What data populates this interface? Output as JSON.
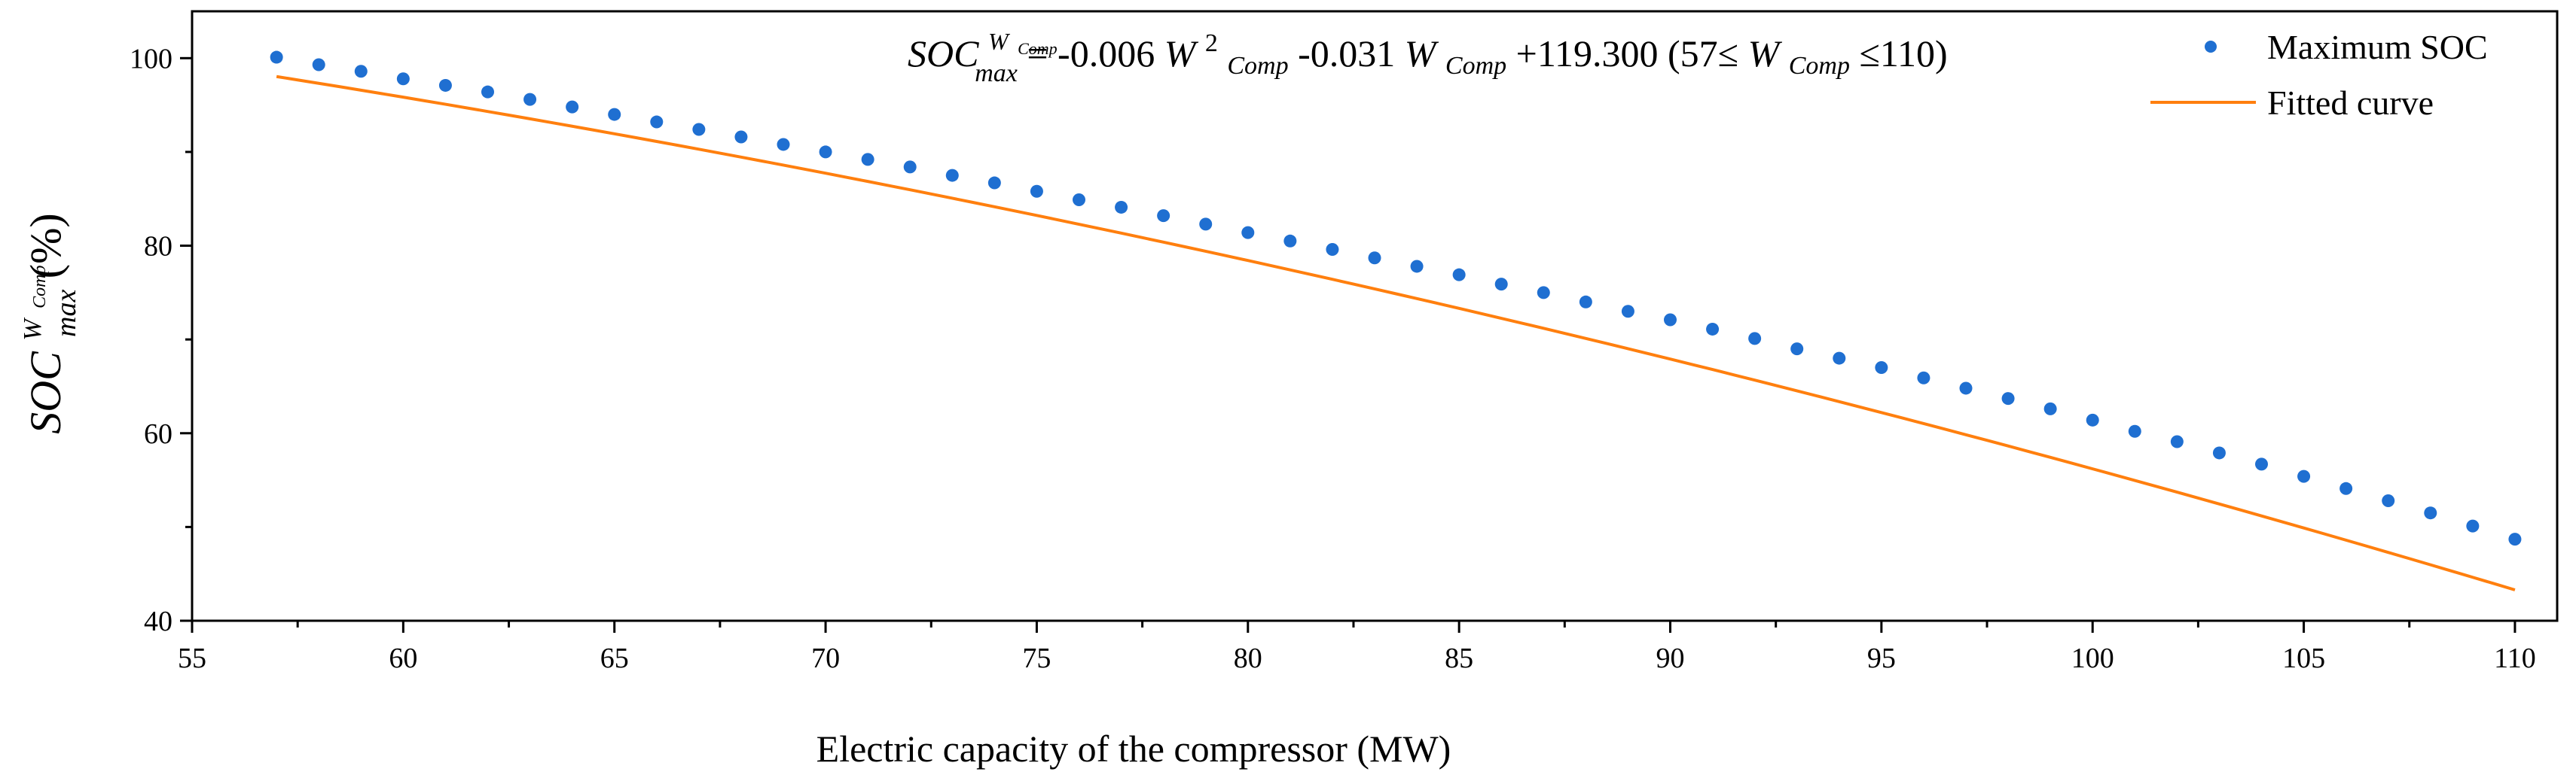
{
  "chart_data": {
    "type": "scatter",
    "xlabel": "Electric capacity of the compressor (MW)",
    "ylabel": {
      "base": "SOC",
      "superscript": "W",
      "superscript_sub": "Comp",
      "subscript": "max",
      "unit": " (%)"
    },
    "xlim": [
      55,
      111
    ],
    "ylim": [
      40,
      105
    ],
    "x_ticks": [
      55,
      60,
      65,
      70,
      75,
      80,
      85,
      90,
      95,
      100,
      105,
      110
    ],
    "y_ticks": [
      40,
      60,
      80,
      100
    ],
    "legend_position": "top-right",
    "equation": {
      "lhs_base": "SOC",
      "lhs_sup": "W",
      "lhs_sup_sub": "Comp",
      "lhs_sub": "max",
      "eq_sign": "=",
      "c2": "-0.006",
      "w": "W",
      "pow": "2",
      "comp": "Comp",
      "c1": "-0.031",
      "c0": "+119.300",
      "range_open": " (57≤",
      "range_close": "≤110)",
      "a": -0.006,
      "b": -0.031,
      "c": 119.3
    },
    "series": [
      {
        "name": "Maximum SOC",
        "kind": "scatter",
        "color": "#1f6fd1",
        "x": [
          57,
          58,
          59,
          60,
          61,
          62,
          63,
          64,
          65,
          66,
          67,
          68,
          69,
          70,
          71,
          72,
          73,
          74,
          75,
          76,
          77,
          78,
          79,
          80,
          81,
          82,
          83,
          84,
          85,
          86,
          87,
          88,
          89,
          90,
          91,
          92,
          93,
          94,
          95,
          96,
          97,
          98,
          99,
          100,
          101,
          102,
          103,
          104,
          105,
          106,
          107,
          108,
          109,
          110
        ],
        "y": [
          100.1,
          99.3,
          98.6,
          97.8,
          97.1,
          96.4,
          95.6,
          94.8,
          94.0,
          93.2,
          92.4,
          91.6,
          90.8,
          90.0,
          89.2,
          88.4,
          87.5,
          86.7,
          85.8,
          84.9,
          84.1,
          83.2,
          82.3,
          81.4,
          80.5,
          79.6,
          78.7,
          77.8,
          76.9,
          75.9,
          75.0,
          74.0,
          73.0,
          72.1,
          71.1,
          70.1,
          69.0,
          68.0,
          67.0,
          65.9,
          64.8,
          63.7,
          62.6,
          61.4,
          60.2,
          59.1,
          57.9,
          56.7,
          55.4,
          54.1,
          52.8,
          51.5,
          50.1,
          48.7
        ]
      },
      {
        "name": "Fitted curve",
        "kind": "line",
        "color": "#ff7f0e",
        "x_range": [
          57,
          110
        ]
      }
    ]
  }
}
